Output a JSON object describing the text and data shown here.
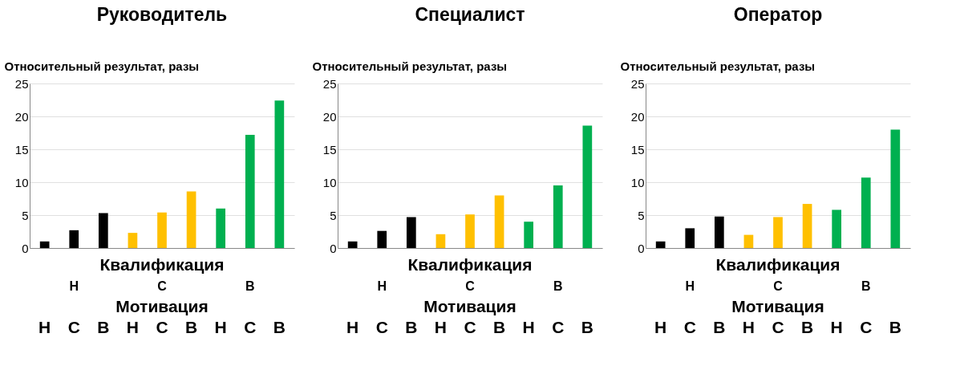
{
  "chart_data": [
    {
      "type": "bar",
      "title": "Руководитель",
      "ylabel": "Относительный результат, разы",
      "legend_title": "Квалификация",
      "xlabel": "Мотивация",
      "categories": [
        "Н",
        "С",
        "В",
        "Н",
        "С",
        "В",
        "Н",
        "С",
        "В"
      ],
      "ylim": [
        0,
        25
      ],
      "yticks": [
        0,
        5,
        10,
        15,
        20,
        25
      ],
      "grid": "y",
      "series": [
        {
          "name": "Н",
          "color": "#000000",
          "values": [
            1.0,
            2.7,
            5.3,
            null,
            null,
            null,
            null,
            null,
            null
          ]
        },
        {
          "name": "С",
          "color": "#ffc000",
          "values": [
            null,
            null,
            null,
            2.3,
            5.4,
            8.6,
            null,
            null,
            null
          ]
        },
        {
          "name": "В",
          "color": "#00b050",
          "values": [
            null,
            null,
            null,
            null,
            null,
            null,
            6.0,
            17.2,
            22.4
          ]
        }
      ]
    },
    {
      "type": "bar",
      "title": "Специалист",
      "ylabel": "Относительный результат, разы",
      "legend_title": "Квалификация",
      "xlabel": "Мотивация",
      "categories": [
        "Н",
        "С",
        "В",
        "Н",
        "С",
        "В",
        "Н",
        "С",
        "В"
      ],
      "ylim": [
        0,
        25
      ],
      "yticks": [
        0,
        5,
        10,
        15,
        20,
        25
      ],
      "grid": "y",
      "series": [
        {
          "name": "Н",
          "color": "#000000",
          "values": [
            1.0,
            2.6,
            4.7,
            null,
            null,
            null,
            null,
            null,
            null
          ]
        },
        {
          "name": "С",
          "color": "#ffc000",
          "values": [
            null,
            null,
            null,
            2.1,
            5.1,
            8.0,
            null,
            null,
            null
          ]
        },
        {
          "name": "В",
          "color": "#00b050",
          "values": [
            null,
            null,
            null,
            null,
            null,
            null,
            4.0,
            9.5,
            18.6
          ]
        }
      ]
    },
    {
      "type": "bar",
      "title": "Оператор",
      "ylabel": "Относительный результат, разы",
      "legend_title": "Квалификация",
      "xlabel": "Мотивация",
      "categories": [
        "Н",
        "С",
        "В",
        "Н",
        "С",
        "В",
        "Н",
        "С",
        "В"
      ],
      "ylim": [
        0,
        25
      ],
      "yticks": [
        0,
        5,
        10,
        15,
        20,
        25
      ],
      "grid": "y",
      "series": [
        {
          "name": "Н",
          "color": "#000000",
          "values": [
            1.0,
            3.0,
            4.8,
            null,
            null,
            null,
            null,
            null,
            null
          ]
        },
        {
          "name": "С",
          "color": "#ffc000",
          "values": [
            null,
            null,
            null,
            2.0,
            4.7,
            6.7,
            null,
            null,
            null
          ]
        },
        {
          "name": "В",
          "color": "#00b050",
          "values": [
            null,
            null,
            null,
            null,
            null,
            null,
            5.8,
            10.7,
            18.0
          ]
        }
      ]
    }
  ]
}
